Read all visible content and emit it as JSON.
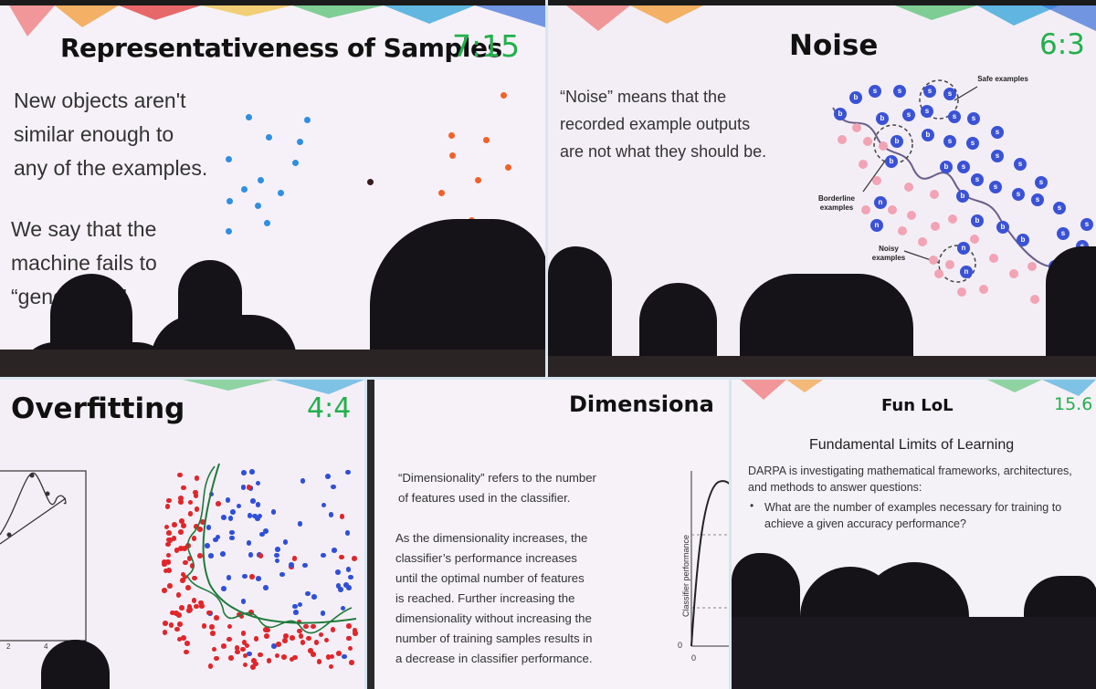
{
  "panels": {
    "representativeness": {
      "title": "Representativeness of Samples",
      "timer": "7:15",
      "text1": [
        "New objects aren't",
        "similar enough to",
        "any of the examples."
      ],
      "text2": [
        "We say that the",
        "machine fails to",
        "“gene"
      ],
      "text2_tail": "”.",
      "colors": {
        "blue": "#2f8fe0",
        "orange": "#f0622a",
        "dark": "#3a1c1c"
      }
    },
    "noise": {
      "title": "Noise",
      "timer": "6:3",
      "text": [
        "“Noise” means that the",
        "recorded example outputs",
        "are not what they should be."
      ],
      "labels": {
        "safe": "Safe examples",
        "borderline": "Borderline examples",
        "noisy": "Noisy examples"
      },
      "class_letters": {
        "s": "s",
        "b": "b",
        "n": "n"
      },
      "colors": {
        "blue": "#3a52d6",
        "pink": "#f2a3b4"
      }
    },
    "overfitting": {
      "title": "Overfitting",
      "timer": "4:4",
      "axis_ticks": [
        "2",
        "4"
      ],
      "colors": {
        "red": "#e0262b",
        "blue": "#2f4fd8",
        "green": "#1f7a3a"
      }
    },
    "dimensionality": {
      "title": "Dimensiona",
      "text1": [
        "“Dimensionality” refers to the number",
        "of features used in the classifier."
      ],
      "text2": [
        "As the dimensionality increases, the",
        "classifier’s performance increases",
        "until the optimal number of features",
        "is reached. Further increasing the",
        "dimensionality without increasing the",
        "number of training samples results in",
        "a decrease in classifier performance."
      ],
      "ylabel": "Classifier performance",
      "tick_x": "0",
      "tick_y": "0"
    },
    "funlol": {
      "title": "Fun LoL",
      "timer": "15.6",
      "subtitle": "Fundamental Limits of Learning",
      "text": [
        "DARPA is investigating mathematical frameworks, architectures,",
        "and methods to answer questions:"
      ],
      "bullet": [
        "What are the number of examples necessary for training to",
        "achieve a given accuracy performance?"
      ]
    }
  }
}
